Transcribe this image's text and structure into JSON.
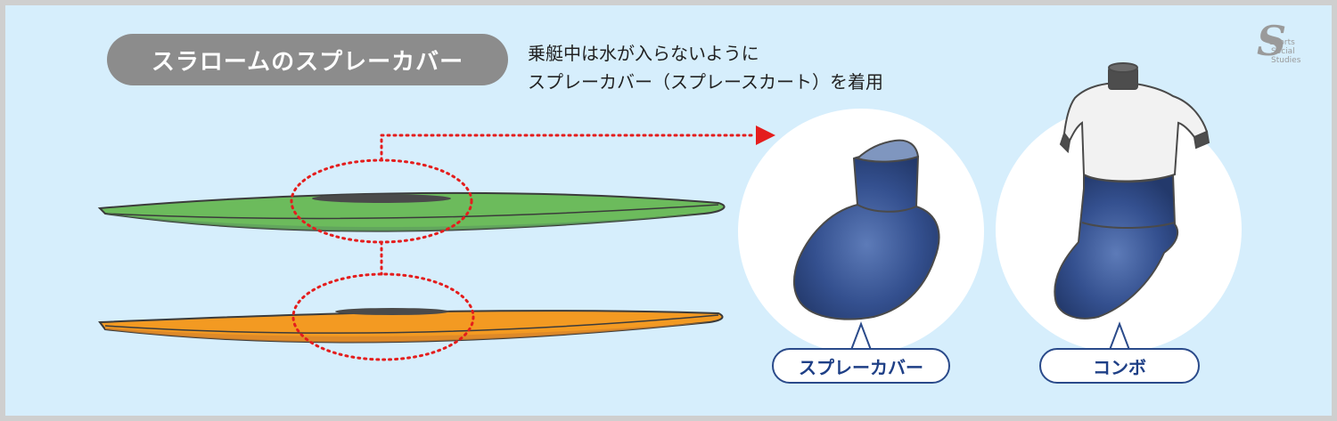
{
  "title": "スラロームのスプレーカバー",
  "description": {
    "line1": "乗艇中は水が入らないように",
    "line2": "スプレーカバー（スプレースカート）を着用"
  },
  "callouts": {
    "spray_cover": "スプレーカバー",
    "combo": "コンボ"
  },
  "logo_text": "Sports Social Studies",
  "colors": {
    "background": "#d6eefc",
    "title_pill": "#8c8c8c",
    "kayak_top": "#69b95a",
    "kayak_bottom": "#e89427",
    "highlight": "#e41d1d",
    "neoprene": "#2f4f8f"
  }
}
